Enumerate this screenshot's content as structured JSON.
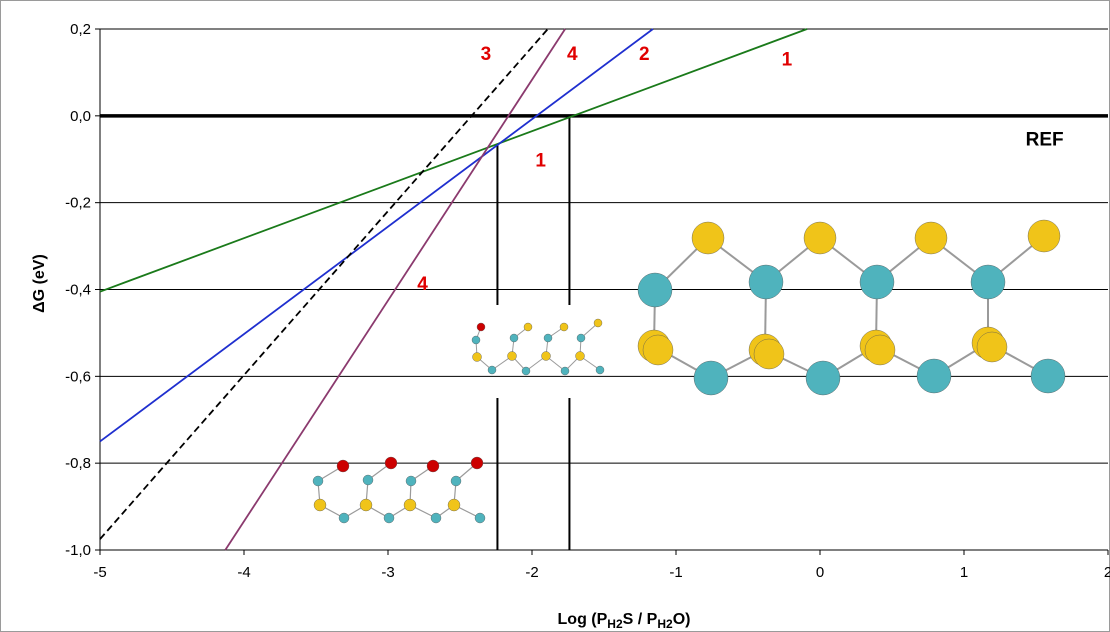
{
  "chart_data": {
    "type": "line",
    "title": "",
    "xlabel": "Log (PH₂S / PH₂O)",
    "xlabel_parts": [
      {
        "text": "Log (",
        "sub": false
      },
      {
        "text": "P",
        "sub": false
      },
      {
        "text": "H",
        "sub": true
      },
      {
        "text": "2",
        "sub": true
      },
      {
        "text": "S / ",
        "sub": false
      },
      {
        "text": "P",
        "sub": false
      },
      {
        "text": "H",
        "sub": true
      },
      {
        "text": "2",
        "sub": true
      },
      {
        "text": "O)",
        "sub": false
      }
    ],
    "ylabel": "ΔG (eV)",
    "xlim": [
      -5,
      2
    ],
    "ylim": [
      -1.0,
      0.2
    ],
    "x_ticks": [
      {
        "value": -5,
        "label": "-5"
      },
      {
        "value": -4,
        "label": "-4"
      },
      {
        "value": -3,
        "label": "-3"
      },
      {
        "value": -2,
        "label": "-2"
      },
      {
        "value": -1,
        "label": "-1"
      },
      {
        "value": 0,
        "label": "0"
      },
      {
        "value": 1,
        "label": "1"
      },
      {
        "value": 2,
        "label": "2"
      }
    ],
    "y_ticks": [
      {
        "value": 0.2,
        "label": "0,2"
      },
      {
        "value": 0.0,
        "label": "0,0"
      },
      {
        "value": -0.2,
        "label": "-0,2"
      },
      {
        "value": -0.4,
        "label": "-0,4"
      },
      {
        "value": -0.6,
        "label": "-0,6"
      },
      {
        "value": -0.8,
        "label": "-0,8"
      },
      {
        "value": -1.0,
        "label": "-1,0"
      }
    ],
    "grid": "horizontal",
    "series": [
      {
        "name": "1",
        "color": "#1a7a1a",
        "dash": false,
        "x": [
          -5.0,
          -0.09
        ],
        "y": [
          -0.405,
          0.2
        ]
      },
      {
        "name": "2",
        "color": "#1f2fcf",
        "dash": false,
        "x": [
          -5.0,
          -1.16
        ],
        "y": [
          -0.75,
          0.2
        ]
      },
      {
        "name": "3",
        "color": "#000000",
        "dash": true,
        "x": [
          -5.0,
          -1.89
        ],
        "y": [
          -0.975,
          0.2
        ]
      },
      {
        "name": "4",
        "color": "#8b3a6e",
        "dash": false,
        "x": [
          -4.13,
          -1.77
        ],
        "y": [
          -1.0,
          0.2
        ]
      }
    ],
    "reference_line": {
      "label": "REF",
      "y": 0.0,
      "color": "#000000"
    },
    "vertical_markers": [
      {
        "x": -2.24,
        "y_top": -0.065,
        "y_bottom": -1.0
      },
      {
        "x": -1.74,
        "y_top": 0.0,
        "y_bottom": -1.0
      }
    ],
    "annotations": [
      {
        "text": "3",
        "x": -2.32,
        "y": 0.145,
        "color": "#e00000"
      },
      {
        "text": "4",
        "x": -1.72,
        "y": 0.145,
        "color": "#e00000"
      },
      {
        "text": "2",
        "x": -1.22,
        "y": 0.145,
        "color": "#e00000"
      },
      {
        "text": "1",
        "x": -0.23,
        "y": 0.132,
        "color": "#e00000"
      },
      {
        "text": "REF",
        "x": 1.56,
        "y": -0.052,
        "color": "#000000"
      },
      {
        "text": "1",
        "x": -1.94,
        "y": -0.1,
        "color": "#e00000"
      },
      {
        "text": "4",
        "x": -2.76,
        "y": -0.385,
        "color": "#e00000"
      }
    ]
  }
}
